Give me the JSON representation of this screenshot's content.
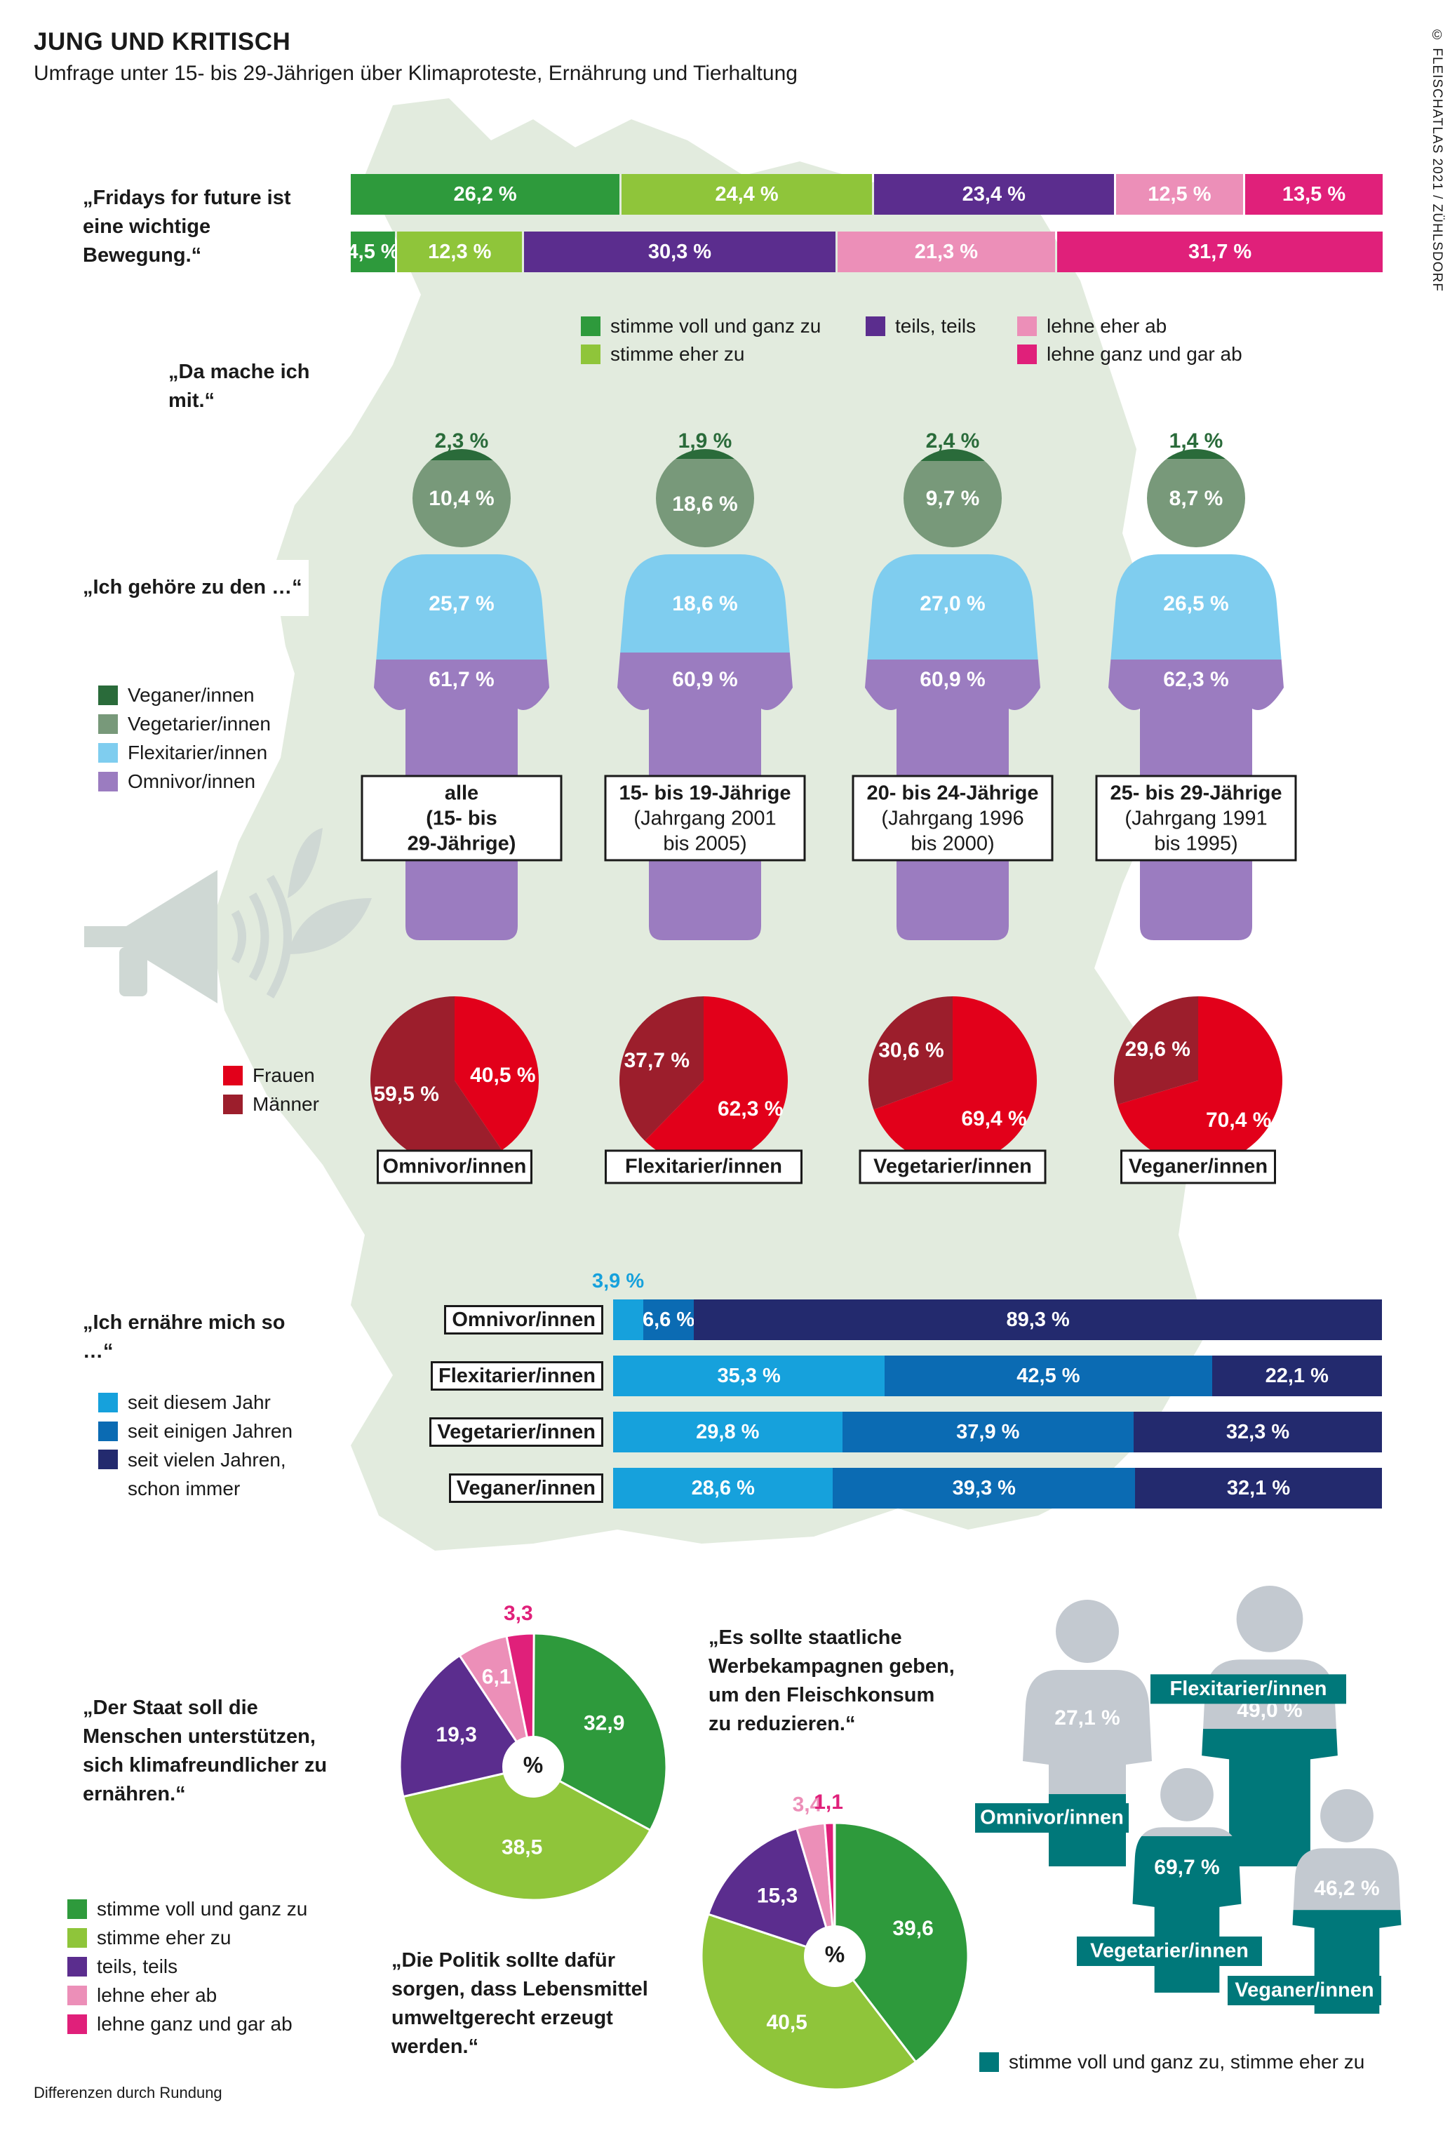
{
  "header": {
    "title": "JUNG UND KRITISCH",
    "subtitle": "Umfrage unter 15- bis 29-Jährigen über Klimaproteste, Ernährung und Tierhaltung",
    "source": "© FLEISCHATLAS 2021 / ZÜHLSDORF",
    "footnote": "Differenzen durch Rundung"
  },
  "colors": {
    "agree_full": "#2e9a3c",
    "agree_rather": "#8fc53a",
    "partly": "#5b2d8e",
    "reject_rather": "#ec8fb8",
    "reject_full": "#e0207a",
    "vegan": "#2a6b3a",
    "vegetarian": "#78997a",
    "flexitarian": "#7fcdef",
    "omnivore": "#9b7cc0",
    "women": "#e2001a",
    "men": "#9c1e2c",
    "since_this_year": "#16a1dc",
    "since_some_years": "#0b6bb3",
    "since_many_years": "#232a6e",
    "teal": "#00787a",
    "grey_figure": "#c3c9d0",
    "map": "#e2ebde"
  },
  "quotes": {
    "fff": "„Fridays for future ist eine wichtige Bewegung.“",
    "mitmachen": "„Da mache ich mit.“",
    "gehoere": "„Ich gehöre zu den …“",
    "ernaehre": "„Ich ernähre mich so …“",
    "staat": "„Der Staat soll die Menschen unterstützen, sich klimafreundlicher zu ernähren.“",
    "werbung": "„Es sollte staatliche Werbekampagnen geben, um den Fleischkonsum zu reduzieren.“",
    "politik": "„Die Politik sollte dafür sorgen, dass Lebensmittel umweltgerecht erzeugt werden.“"
  },
  "legends": {
    "agreement": [
      "stimme voll und ganz zu",
      "stimme eher zu",
      "teils, teils",
      "lehne eher ab",
      "lehne ganz und gar ab"
    ],
    "diet": [
      "Veganer/innen",
      "Vegetarier/innen",
      "Flexitarier/innen",
      "Omnivor/innen"
    ],
    "gender": [
      "Frauen",
      "Männer"
    ],
    "duration": [
      "seit diesem Jahr",
      "seit einigen Jahren",
      "seit vielen Jahren, schon immer"
    ],
    "campaign": "stimme voll und ganz zu, stimme eher zu"
  },
  "chart_data": [
    {
      "type": "bar",
      "orientation": "horizontal-stacked",
      "title": "Fridays for Future",
      "categories": [
        "„Fridays for future ist eine wichtige Bewegung.“",
        "„Da mache ich mit.“"
      ],
      "series": [
        {
          "name": "stimme voll und ganz zu",
          "values": [
            26.2,
            4.5
          ]
        },
        {
          "name": "stimme eher zu",
          "values": [
            24.4,
            12.3
          ]
        },
        {
          "name": "teils, teils",
          "values": [
            23.4,
            30.3
          ]
        },
        {
          "name": "lehne eher ab",
          "values": [
            12.5,
            21.3
          ]
        },
        {
          "name": "lehne ganz und gar ab",
          "values": [
            13.5,
            31.7
          ]
        }
      ],
      "labels": [
        [
          "26,2 %",
          "24,4 %",
          "23,4 %",
          "12,5 %",
          "13,5 %"
        ],
        [
          "4,5 %",
          "12,3 %",
          "30,3 %",
          "21,3 %",
          "31,7 %"
        ]
      ]
    },
    {
      "type": "bar",
      "orientation": "vertical-stacked-figures",
      "groups": [
        {
          "label": "alle (15- bis 29-Jährige)",
          "label_lines": [
            "alle",
            "(15- bis",
            "29-Jährige)"
          ],
          "bold": true
        },
        {
          "label": "15- bis 19-Jährige (Jahrgang 2001 bis 2005)",
          "label_lines": [
            "15- bis 19-Jährige",
            "(Jahrgang 2001",
            "bis 2005)"
          ],
          "bold": false
        },
        {
          "label": "20- bis 24-Jährige (Jahrgang 1996 bis 2000)",
          "label_lines": [
            "20- bis 24-Jährige",
            "(Jahrgang 1996",
            "bis 2000)"
          ],
          "bold": false
        },
        {
          "label": "25- bis 29-Jährige (Jahrgang 1991 bis 1995)",
          "label_lines": [
            "25- bis 29-Jährige",
            "(Jahrgang 1991",
            "bis 1995)"
          ],
          "bold": false
        }
      ],
      "series": [
        {
          "name": "Veganer/innen",
          "values": [
            2.3,
            1.9,
            2.4,
            1.4
          ],
          "labels": [
            "2,3 %",
            "1,9 %",
            "2,4 %",
            "1,4 %"
          ]
        },
        {
          "name": "Vegetarier/innen",
          "values": [
            10.4,
            18.6,
            9.7,
            8.7
          ],
          "labels": [
            "10,4 %",
            "18,6 %",
            "9,7 %",
            "8,7 %"
          ]
        },
        {
          "name": "Flexitarier/innen",
          "values": [
            25.7,
            18.6,
            27.0,
            26.5
          ],
          "labels": [
            "25,7 %",
            "18,6 %",
            "27,0 %",
            "26,5 %"
          ]
        },
        {
          "name": "Omnivor/innen",
          "values": [
            61.7,
            60.9,
            60.9,
            62.3
          ],
          "labels": [
            "61,7 %",
            "60,9 %",
            "60,9 %",
            "62,3 %"
          ]
        }
      ]
    },
    {
      "type": "pie",
      "title": "Frauen / Männer",
      "pies": [
        {
          "label": "Omnivor/innen",
          "women": 40.5,
          "men": 59.5,
          "women_label": "40,5 %",
          "men_label": "59,5 %"
        },
        {
          "label": "Flexitarier/innen",
          "women": 62.3,
          "men": 37.7,
          "women_label": "62,3 %",
          "men_label": "37,7 %"
        },
        {
          "label": "Vegetarier/innen",
          "women": 69.4,
          "men": 30.6,
          "women_label": "69,4 %",
          "men_label": "30,6 %"
        },
        {
          "label": "Veganer/innen",
          "women": 70.4,
          "men": 29.6,
          "women_label": "70,4 %",
          "men_label": "29,6 %"
        }
      ]
    },
    {
      "type": "bar",
      "orientation": "horizontal-stacked",
      "title": "„Ich ernähre mich so …“",
      "categories": [
        "Omnivor/innen",
        "Flexitarier/innen",
        "Vegetarier/innen",
        "Veganer/innen"
      ],
      "series": [
        {
          "name": "seit diesem Jahr",
          "values": [
            3.9,
            35.3,
            29.8,
            28.6
          ]
        },
        {
          "name": "seit einigen Jahren",
          "values": [
            6.6,
            42.5,
            37.9,
            39.3
          ]
        },
        {
          "name": "seit vielen Jahren, schon immer",
          "values": [
            89.3,
            22.1,
            32.3,
            32.1
          ]
        }
      ],
      "labels": [
        [
          "3,9 %",
          "6,6 %",
          "89,3 %"
        ],
        [
          "35,3 %",
          "42,5 %",
          "22,1 %"
        ],
        [
          "29,8 %",
          "37,9 %",
          "32,3 %"
        ],
        [
          "28,6 %",
          "39,3 %",
          "32,1 %"
        ]
      ]
    },
    {
      "type": "pie",
      "title": "„Der Staat soll die Menschen unterstützen, sich klimafreundlicher zu ernähren.“",
      "center_label": "%",
      "slices": [
        {
          "name": "stimme voll und ganz zu",
          "value": 32.9,
          "label": "32,9"
        },
        {
          "name": "stimme eher zu",
          "value": 38.5,
          "label": "38,5"
        },
        {
          "name": "teils, teils",
          "value": 19.3,
          "label": "19,3"
        },
        {
          "name": "lehne eher ab",
          "value": 6.1,
          "label": "6,1"
        },
        {
          "name": "lehne ganz und gar ab",
          "value": 3.3,
          "label": "3,3"
        }
      ]
    },
    {
      "type": "pie",
      "title": "„Die Politik sollte dafür sorgen, dass Lebensmittel umweltgerecht erzeugt werden.“",
      "center_label": "%",
      "slices": [
        {
          "name": "stimme voll und ganz zu",
          "value": 39.6,
          "label": "39,6"
        },
        {
          "name": "stimme eher zu",
          "value": 40.5,
          "label": "40,5"
        },
        {
          "name": "teils, teils",
          "value": 15.3,
          "label": "15,3"
        },
        {
          "name": "lehne eher ab",
          "value": 3.4,
          "label": "3,4"
        },
        {
          "name": "lehne ganz und gar ab",
          "value": 1.1,
          "label": "1,1"
        }
      ]
    },
    {
      "type": "bar",
      "orientation": "figure-fill",
      "title": "„Es sollte staatliche Werbekampagnen geben, um den Fleischkonsum zu reduzieren.“",
      "series_name": "stimme voll und ganz zu, stimme eher zu",
      "groups": [
        {
          "name": "Omnivor/innen",
          "value": 27.1,
          "label": "27,1 %"
        },
        {
          "name": "Flexitarier/innen",
          "value": 49.0,
          "label": "49,0 %"
        },
        {
          "name": "Vegetarier/innen",
          "value": 69.7,
          "label": "69,7 %"
        },
        {
          "name": "Veganer/innen",
          "value": 46.2,
          "label": "46,2 %"
        }
      ]
    }
  ]
}
